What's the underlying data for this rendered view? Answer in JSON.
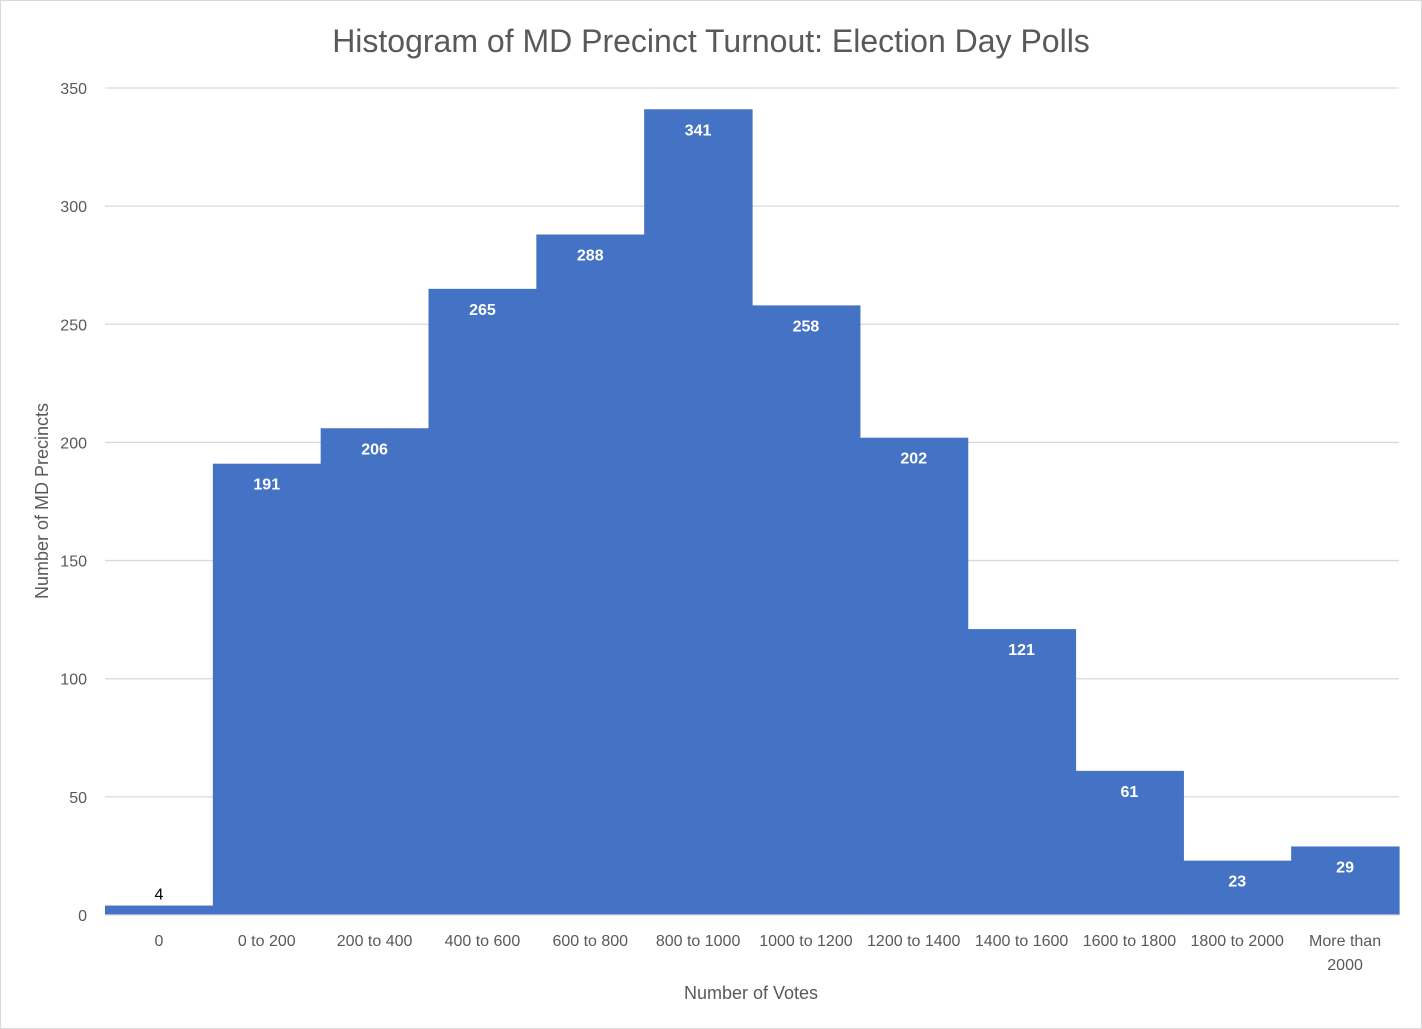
{
  "chart_data": {
    "type": "bar",
    "title": "Histogram of MD Precinct Turnout: Election Day Polls",
    "xlabel": "Number of Votes",
    "ylabel": "Number of MD Precincts",
    "categories": [
      "0",
      "0 to 200",
      "200 to 400",
      "400 to 600",
      "600 to 800",
      "800 to 1000",
      "1000 to 1200",
      "1200 to 1400",
      "1400 to 1600",
      "1600 to 1800",
      "1800 to 2000",
      "More than 2000"
    ],
    "values": [
      4,
      191,
      206,
      265,
      288,
      341,
      258,
      202,
      121,
      61,
      23,
      29
    ],
    "data_labels": [
      "4",
      "191",
      "206",
      "265",
      "288",
      "341",
      "258",
      "202",
      "121",
      "61",
      "23",
      "29"
    ],
    "ylim": [
      0,
      350
    ],
    "yticks": [
      0,
      50,
      100,
      150,
      200,
      250,
      300,
      350
    ],
    "ytick_labels": [
      "0",
      "50",
      "100",
      "150",
      "200",
      "250",
      "300",
      "350"
    ],
    "grid": true,
    "legend": "none",
    "bar_color": "#4472C4",
    "gridline_color": "#d9d9d9"
  }
}
